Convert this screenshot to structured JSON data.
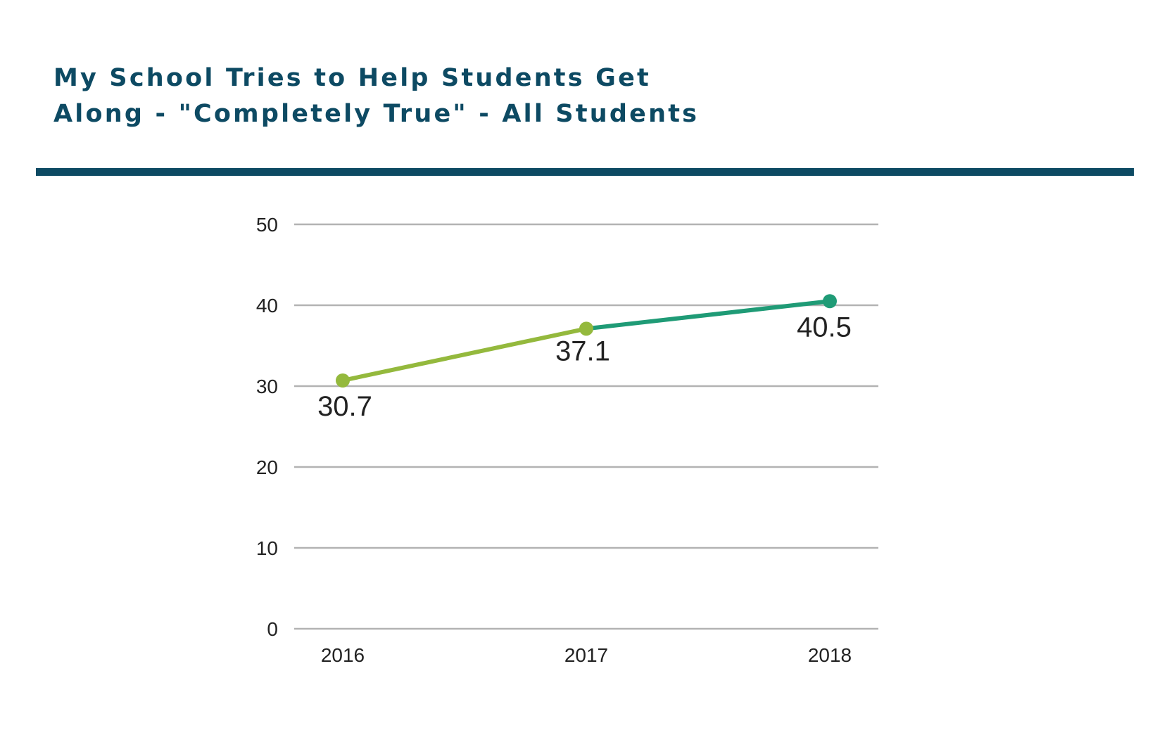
{
  "title_lines": [
    "My School Tries to Help Students Get",
    "Along - \"Completely True\" - All Students"
  ],
  "colors": {
    "title": "#0d4a63",
    "rule": "#0d4a63",
    "grid": "#b3b3b3",
    "text": "#222222",
    "segments": [
      "#94b93d",
      "#1f9b76"
    ],
    "points": [
      "#94b93d",
      "#94b93d",
      "#1f9b76"
    ]
  },
  "chart_data": {
    "type": "line",
    "title": "My School Tries to Help Students Get Along - \"Completely True\" - All Students",
    "categories": [
      "2016",
      "2017",
      "2018"
    ],
    "series": [
      {
        "values": [
          30.7,
          37.1,
          40.5
        ]
      }
    ],
    "data_labels": [
      "30.7",
      "37.1",
      "40.5"
    ],
    "data_label_position": [
      "below",
      "below",
      "below"
    ],
    "y_ticks": [
      0,
      10,
      20,
      30,
      40,
      50
    ],
    "ylim": [
      0,
      50
    ],
    "xlabel": "",
    "ylabel": "",
    "grid": true,
    "legend": "none"
  }
}
